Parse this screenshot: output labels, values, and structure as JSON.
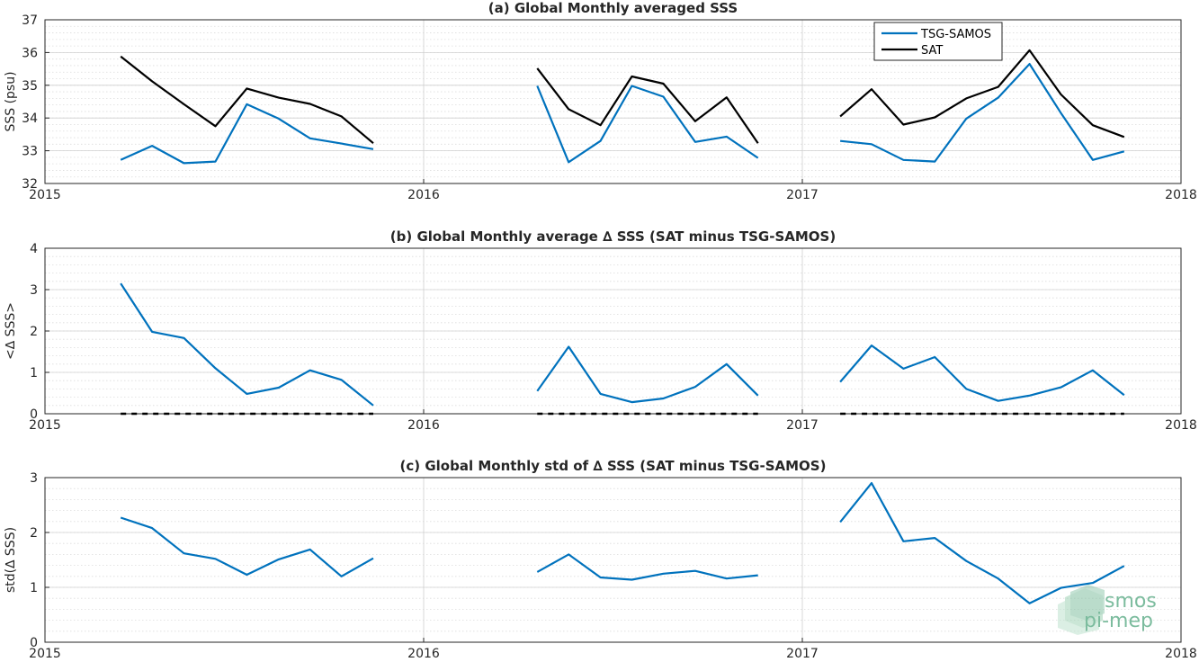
{
  "chart_data": [
    {
      "type": "line",
      "title": "(a) Global Monthly averaged SSS",
      "xlabel": "",
      "ylabel": "SSS (psu)",
      "xlim": [
        2015,
        2018
      ],
      "ylim": [
        32,
        37
      ],
      "xticks": [
        2015,
        2016,
        2017,
        2018
      ],
      "yticks": [
        32,
        33,
        34,
        35,
        36,
        37
      ],
      "grid": true,
      "minor_grid": true,
      "legend": "top-right",
      "series": [
        {
          "name": "TSG-SAMOS",
          "color": "#0072bd",
          "segments": [
            {
              "x": [
                2015.2,
                2015.283,
                2015.367,
                2015.45,
                2015.533,
                2015.617,
                2015.7,
                2015.783,
                2015.867
              ],
              "y": [
                32.72,
                33.15,
                32.62,
                32.67,
                34.42,
                33.98,
                33.38,
                33.22,
                33.05
              ]
            },
            {
              "x": [
                2016.3,
                2016.383,
                2016.467,
                2016.55,
                2016.633,
                2016.717,
                2016.8,
                2016.883
              ],
              "y": [
                34.98,
                32.65,
                33.3,
                34.98,
                34.65,
                33.27,
                33.43,
                32.78
              ]
            },
            {
              "x": [
                2017.1,
                2017.183,
                2017.267,
                2017.35,
                2017.433,
                2017.517,
                2017.6,
                2017.683,
                2017.767,
                2017.85
              ],
              "y": [
                33.3,
                33.2,
                32.72,
                32.67,
                33.98,
                34.62,
                35.65,
                34.15,
                32.72,
                32.98
              ]
            }
          ]
        },
        {
          "name": "SAT",
          "color": "#000000",
          "segments": [
            {
              "x": [
                2015.2,
                2015.283,
                2015.367,
                2015.45,
                2015.533,
                2015.617,
                2015.7,
                2015.783,
                2015.867
              ],
              "y": [
                35.88,
                35.12,
                34.42,
                33.75,
                34.9,
                34.62,
                34.43,
                34.05,
                33.23
              ]
            },
            {
              "x": [
                2016.3,
                2016.383,
                2016.467,
                2016.55,
                2016.633,
                2016.717,
                2016.8,
                2016.883
              ],
              "y": [
                35.52,
                34.27,
                33.78,
                35.27,
                35.05,
                33.9,
                34.63,
                33.23
              ]
            },
            {
              "x": [
                2017.1,
                2017.183,
                2017.267,
                2017.35,
                2017.433,
                2017.517,
                2017.6,
                2017.683,
                2017.767,
                2017.85
              ],
              "y": [
                34.05,
                34.88,
                33.8,
                34.02,
                34.6,
                34.95,
                36.07,
                34.72,
                33.78,
                33.42
              ]
            }
          ]
        }
      ]
    },
    {
      "type": "line",
      "title": "(b) Global Monthly average ∆ SSS (SAT minus TSG-SAMOS)",
      "xlabel": "",
      "ylabel": "<∆ SSS>",
      "xlim": [
        2015,
        2018
      ],
      "ylim": [
        0,
        4
      ],
      "xticks": [
        2015,
        2016,
        2017,
        2018
      ],
      "yticks": [
        0,
        1,
        2,
        3,
        4
      ],
      "grid": true,
      "minor_grid": true,
      "series": [
        {
          "color": "#0072bd",
          "segments": [
            {
              "x": [
                2015.2,
                2015.283,
                2015.367,
                2015.45,
                2015.533,
                2015.617,
                2015.7,
                2015.783,
                2015.867
              ],
              "y": [
                3.15,
                1.98,
                1.83,
                1.1,
                0.48,
                0.63,
                1.05,
                0.82,
                0.2
              ]
            },
            {
              "x": [
                2016.3,
                2016.383,
                2016.467,
                2016.55,
                2016.633,
                2016.717,
                2016.8,
                2016.883
              ],
              "y": [
                0.55,
                1.62,
                0.48,
                0.28,
                0.37,
                0.65,
                1.2,
                0.44
              ]
            },
            {
              "x": [
                2017.1,
                2017.183,
                2017.267,
                2017.35,
                2017.433,
                2017.517,
                2017.6,
                2017.683,
                2017.767,
                2017.85
              ],
              "y": [
                0.77,
                1.65,
                1.09,
                1.37,
                0.6,
                0.31,
                0.44,
                0.64,
                1.05,
                0.45
              ]
            }
          ]
        },
        {
          "color": "#000000",
          "dashed": true,
          "segments": [
            {
              "x": [
                2015.2,
                2015.867
              ],
              "y": [
                0,
                0
              ]
            },
            {
              "x": [
                2016.3,
                2016.883
              ],
              "y": [
                0,
                0
              ]
            },
            {
              "x": [
                2017.1,
                2017.85
              ],
              "y": [
                0,
                0
              ]
            }
          ]
        }
      ]
    },
    {
      "type": "line",
      "title": "(c) Global Monthly std of ∆ SSS (SAT minus TSG-SAMOS)",
      "xlabel": "",
      "ylabel": "std(∆ SSS)",
      "xlim": [
        2015,
        2018
      ],
      "ylim": [
        0,
        3
      ],
      "xticks": [
        2015,
        2016,
        2017,
        2018
      ],
      "yticks": [
        0,
        1,
        2,
        3
      ],
      "grid": true,
      "minor_grid": true,
      "series": [
        {
          "color": "#0072bd",
          "segments": [
            {
              "x": [
                2015.2,
                2015.283,
                2015.367,
                2015.45,
                2015.533,
                2015.617,
                2015.7,
                2015.783,
                2015.867
              ],
              "y": [
                2.27,
                2.08,
                1.62,
                1.52,
                1.23,
                1.51,
                1.69,
                1.2,
                1.53
              ]
            },
            {
              "x": [
                2016.3,
                2016.383,
                2016.467,
                2016.55,
                2016.633,
                2016.717,
                2016.8,
                2016.883
              ],
              "y": [
                1.28,
                1.6,
                1.18,
                1.14,
                1.25,
                1.3,
                1.16,
                1.22
              ]
            },
            {
              "x": [
                2017.1,
                2017.183,
                2017.267,
                2017.35,
                2017.433,
                2017.517,
                2017.6,
                2017.683,
                2017.767,
                2017.85
              ],
              "y": [
                2.19,
                2.9,
                1.84,
                1.9,
                1.48,
                1.16,
                0.71,
                0.99,
                1.08,
                1.39
              ]
            }
          ]
        }
      ]
    }
  ],
  "watermark": {
    "line1": "smos",
    "line2": "pi-mep",
    "color": "#7cbc9e"
  }
}
